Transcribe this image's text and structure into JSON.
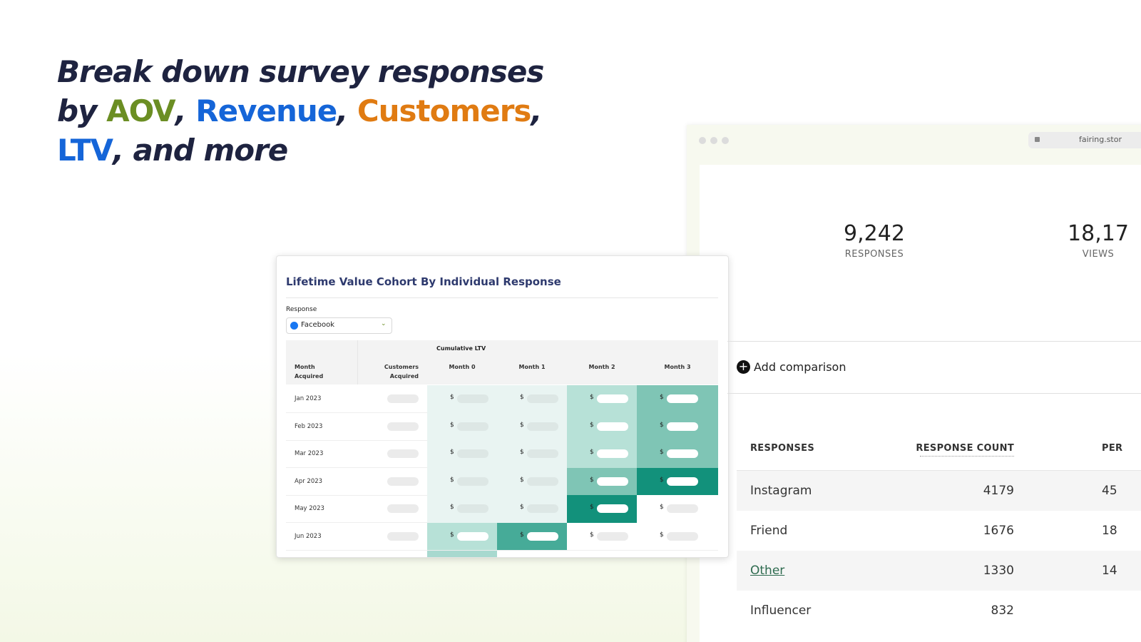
{
  "headline": {
    "lines": [
      [
        {
          "text": "Break down survey responses"
        }
      ],
      [
        {
          "text": "by "
        },
        {
          "text": "AOV",
          "color": "#6b8e23"
        },
        {
          "text": ", "
        },
        {
          "text": "Revenue",
          "color": "#1565d8"
        },
        {
          "text": ", "
        },
        {
          "text": "Customers",
          "color": "#e07b12"
        },
        {
          "text": ","
        }
      ],
      [
        {
          "text": "LTV",
          "color": "#1565d8"
        },
        {
          "text": ", and more"
        }
      ]
    ]
  },
  "browser": {
    "url": "fairing.stor"
  },
  "stats": [
    {
      "value": "9,242",
      "label": "RESPONSES"
    },
    {
      "value": "18,17",
      "label": "VIEWS"
    }
  ],
  "comparison": "Add comparison",
  "responses_table": {
    "headers": [
      "RESPONSES",
      "RESPONSE COUNT",
      "PER"
    ],
    "rows": [
      [
        "Instagram",
        4179,
        "45"
      ],
      [
        "Friend",
        1676,
        "18"
      ],
      [
        "Other",
        1330,
        "14"
      ],
      [
        "Influencer",
        832
      ]
    ]
  },
  "cohort": {
    "title": "Lifetime Value Cohort By Individual Response",
    "filter_label": "Response",
    "filter_value": "Facebook",
    "group_header": "Cumulative LTV",
    "currency": "$",
    "columns": [
      "Month Acquired",
      "Customers Acquired",
      "Month 0",
      "Month 1",
      "Month 2",
      "Month 3"
    ],
    "rows": [
      {
        "month": "Jan 2023",
        "cells": [
          "#e9f4f2",
          "#e9f4f2",
          "#b7e1d7",
          "#7fc5b5"
        ]
      },
      {
        "month": "Feb 2023",
        "cells": [
          "#e9f4f2",
          "#e9f4f2",
          "#b7e1d7",
          "#7fc5b5"
        ]
      },
      {
        "month": "Mar 2023",
        "cells": [
          "#e9f4f2",
          "#e9f4f2",
          "#b7e1d7",
          "#7fc5b5"
        ]
      },
      {
        "month": "Apr 2023",
        "cells": [
          "#e9f4f2",
          "#e9f4f2",
          "#7fc5b5",
          "#12917b"
        ]
      },
      {
        "month": "May 2023",
        "cells": [
          "#e9f4f2",
          "#e9f4f2",
          "#12917b",
          "#ffffff"
        ]
      },
      {
        "month": "Jun 2023",
        "cells": [
          "#b7e1d7",
          "#46ab98",
          "#ffffff",
          "#ffffff"
        ]
      }
    ]
  }
}
